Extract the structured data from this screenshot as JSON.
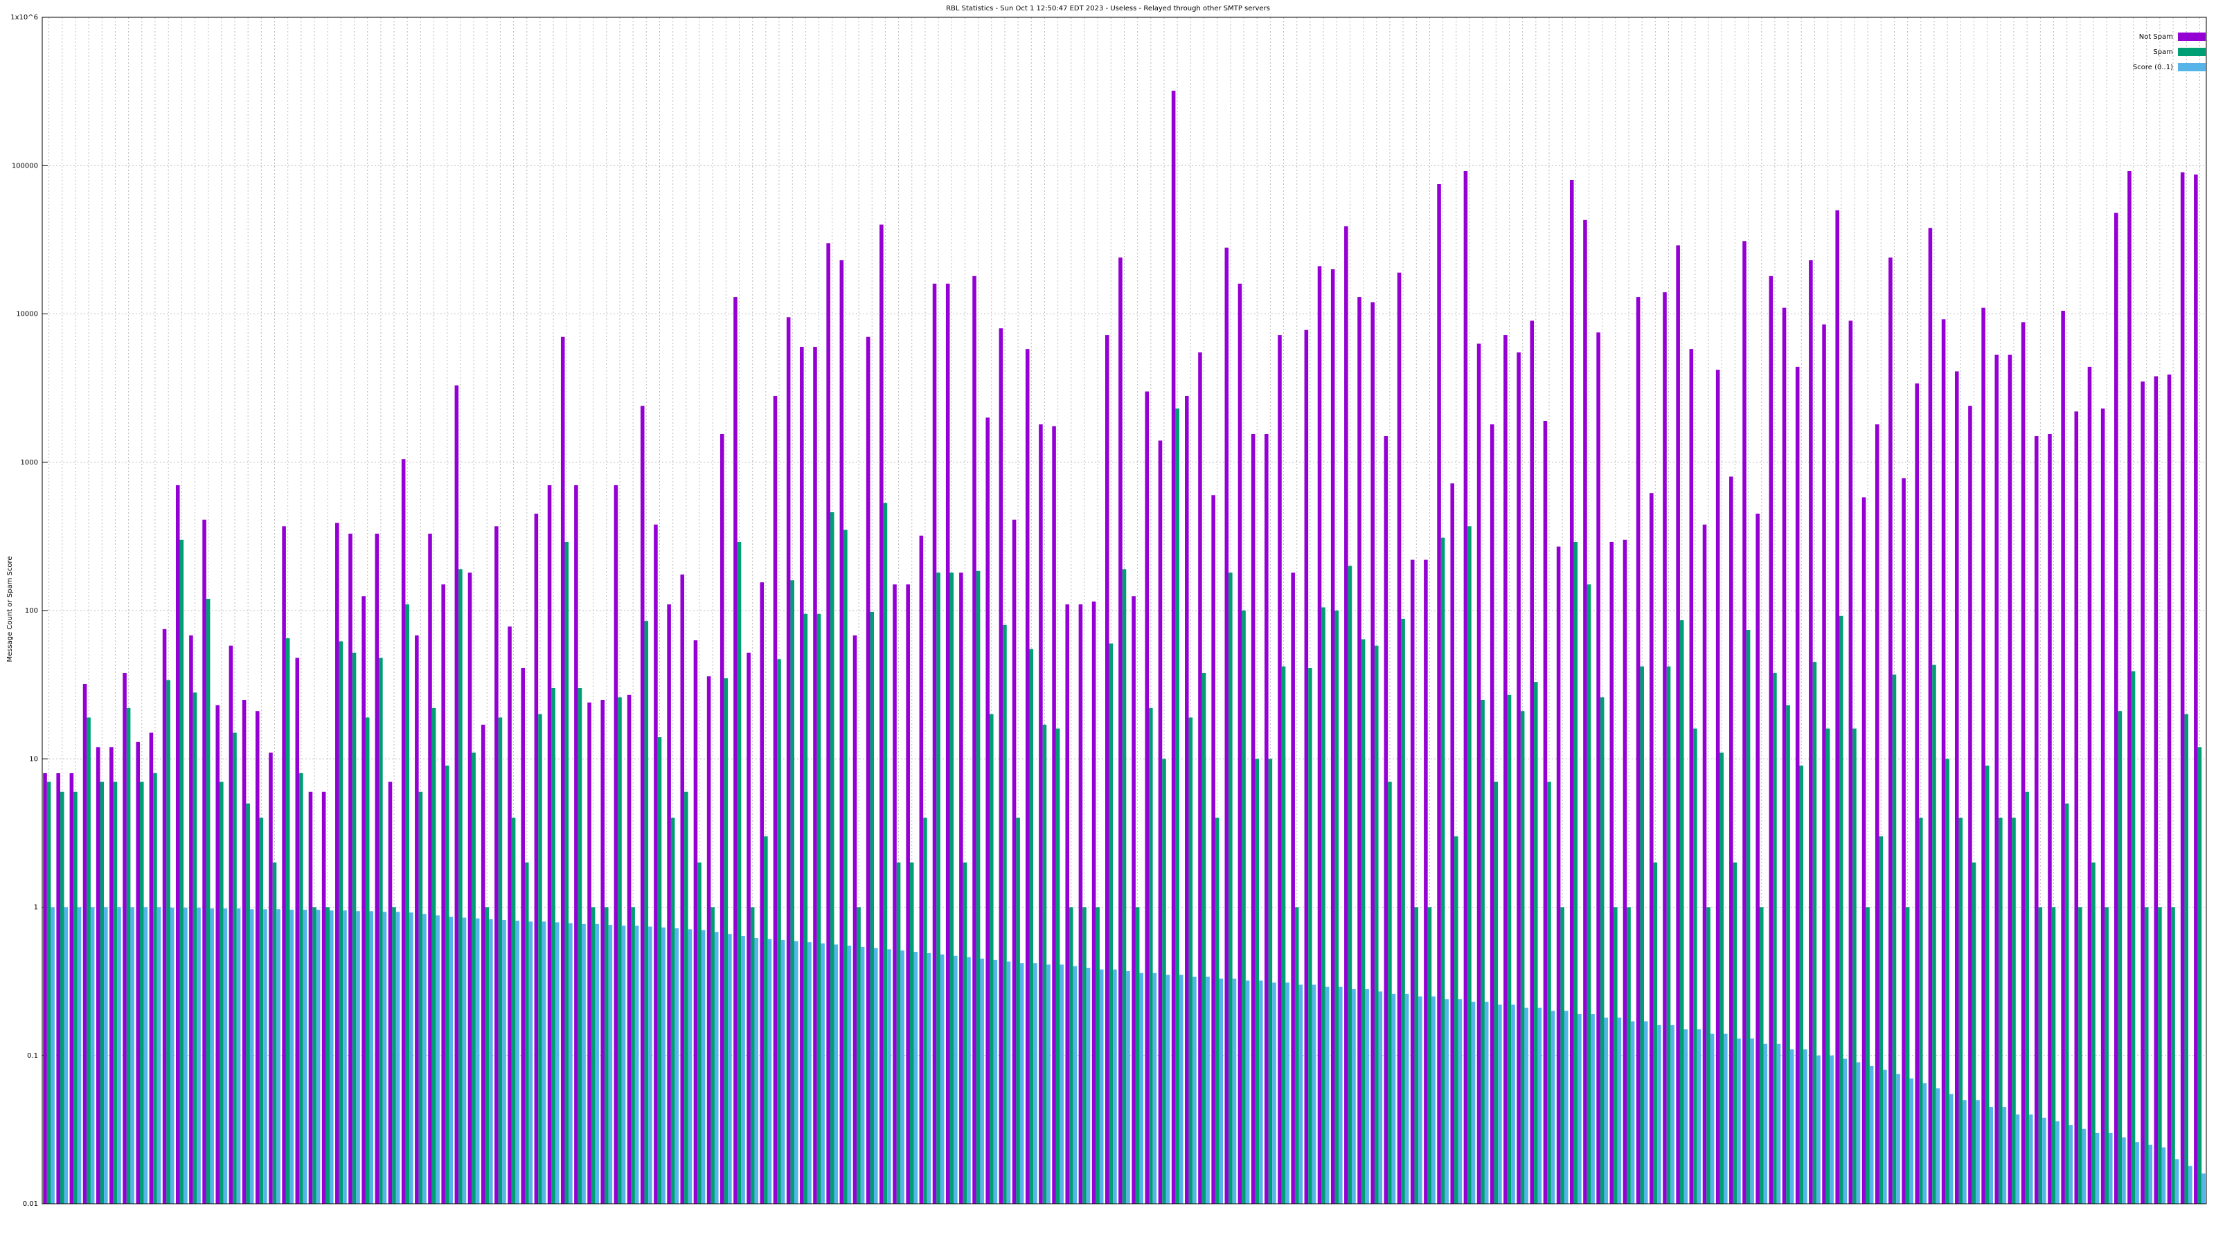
{
  "chart_data": {
    "type": "bar",
    "title": "RBL Statistics - Sun Oct  1 12:50:47 EDT 2023 - Useless - Relayed through other SMTP servers",
    "y_label": "Message Count or Spam Score",
    "log_scale": true,
    "grid": true,
    "legend": "top-right",
    "ylim": [
      0.01,
      1000000
    ],
    "yticks": [
      0.01,
      0.1,
      1,
      10,
      100,
      1000,
      10000,
      100000,
      {
        "value": 1000000,
        "label": "1x10^6"
      }
    ],
    "categories": [
      null,
      null,
      null,
      null,
      null,
      null,
      null,
      null,
      null,
      null,
      null,
      null,
      null,
      null,
      null,
      null,
      null,
      null,
      null,
      null,
      null,
      null,
      null,
      null,
      null,
      null,
      null,
      null,
      null,
      null,
      null,
      null,
      null,
      null,
      null,
      null,
      null,
      null,
      null,
      null,
      null,
      null,
      null,
      null,
      null,
      null,
      null,
      null,
      null,
      null,
      null,
      null,
      null,
      null,
      null,
      null,
      null,
      null,
      null,
      null,
      null,
      null,
      null,
      null,
      null,
      null,
      null,
      null,
      null,
      null,
      null,
      null,
      null,
      null,
      null,
      null,
      null,
      null,
      null,
      null,
      null,
      null,
      null,
      null,
      null,
      null,
      null,
      null,
      null,
      null,
      null,
      null,
      null,
      null,
      null,
      null,
      null,
      null,
      null,
      null,
      null,
      null,
      null,
      null,
      null,
      null,
      null,
      null,
      null,
      null,
      null,
      null,
      null,
      null,
      null,
      null,
      null,
      null,
      null,
      null,
      null,
      null,
      null,
      null,
      null,
      null,
      null,
      null,
      null,
      null,
      null,
      null,
      null,
      null,
      null,
      null,
      null,
      null,
      null,
      null,
      null,
      null,
      null,
      null,
      null,
      null,
      null,
      null,
      null,
      null,
      null,
      null,
      null,
      null,
      null,
      null,
      null,
      null,
      null,
      null,
      null,
      null,
      null
    ],
    "series": [
      {
        "name": "Not Spam",
        "color": "#9400d3",
        "values": [
          8,
          8,
          8,
          32,
          12,
          12,
          38,
          13,
          15,
          75,
          700,
          68,
          410,
          23,
          58,
          25,
          21,
          11,
          370,
          48,
          6,
          6,
          390,
          330,
          125,
          330,
          7,
          1050,
          68,
          330,
          150,
          3300,
          180,
          17,
          370,
          78,
          41,
          450,
          700,
          7000,
          700,
          24,
          25,
          700,
          27,
          2400,
          380,
          110,
          175,
          63,
          36,
          1550,
          13000,
          52,
          155,
          2800,
          9500,
          6000,
          6000,
          30000,
          23000,
          68,
          7000,
          40000,
          150,
          150,
          320,
          16000,
          16000,
          180,
          18000,
          2000,
          8000,
          410,
          5800,
          1800,
          1750,
          110,
          110,
          115,
          7200,
          24000,
          125,
          3000,
          1400,
          320000,
          2800,
          5500,
          600,
          28000,
          16000,
          1550,
          1550,
          7200,
          180,
          7800,
          21000,
          20000,
          39000,
          13000,
          12000,
          1500,
          19000,
          220,
          220,
          75000,
          720,
          92000,
          6300,
          1800,
          7200,
          5500,
          9000,
          1900,
          270,
          80000,
          43000,
          7500,
          290,
          300,
          13000,
          620,
          14000,
          29000,
          5800,
          380,
          4200,
          800,
          31000,
          450,
          18000,
          11000,
          4400,
          23000,
          8500,
          50000,
          9000,
          580,
          1800,
          24000,
          780,
          3400,
          38000,
          9200,
          4100,
          2400,
          11000,
          5300,
          5300,
          8800,
          1500,
          1550,
          10500,
          2200,
          4400,
          2300,
          48000,
          92000,
          3500,
          3800,
          3900,
          90000,
          87000
        ]
      },
      {
        "name": "Spam",
        "color": "#009e73",
        "values": [
          7,
          6,
          6,
          19,
          7,
          7,
          22,
          7,
          8,
          34,
          300,
          28,
          120,
          7,
          15,
          5,
          4,
          2,
          65,
          8,
          1,
          1,
          62,
          52,
          19,
          48,
          1,
          110,
          6,
          22,
          9,
          190,
          11,
          1,
          19,
          4,
          2,
          20,
          30,
          290,
          30,
          1,
          1,
          26,
          1,
          85,
          14,
          4,
          6,
          2,
          1,
          35,
          290,
          1,
          3,
          47,
          160,
          95,
          95,
          460,
          350,
          1,
          98,
          530,
          2,
          2,
          4,
          180,
          180,
          2,
          185,
          20,
          80,
          4,
          55,
          17,
          16,
          1,
          1,
          1,
          60,
          190,
          1,
          22,
          10,
          2300,
          19,
          38,
          4,
          180,
          100,
          10,
          10,
          42,
          1,
          41,
          105,
          100,
          200,
          64,
          58,
          7,
          88,
          1,
          1,
          310,
          3,
          370,
          25,
          7,
          27,
          21,
          33,
          7,
          1,
          290,
          150,
          26,
          1,
          1,
          42,
          2,
          42,
          86,
          16,
          1,
          11,
          2,
          74,
          1,
          38,
          23,
          9,
          45,
          16,
          92,
          16,
          1,
          3,
          37,
          1,
          4,
          43,
          10,
          4,
          2,
          9,
          4,
          4,
          6,
          1,
          1,
          5,
          1,
          2,
          1,
          21,
          39,
          1,
          1,
          1,
          20,
          12
        ]
      },
      {
        "name": "Score (0..1)",
        "color": "#56b4e9",
        "values": [
          1,
          1,
          1,
          1,
          1,
          1,
          1,
          1,
          1,
          0.99,
          0.99,
          0.99,
          0.98,
          0.98,
          0.98,
          0.97,
          0.97,
          0.97,
          0.96,
          0.96,
          0.96,
          0.95,
          0.95,
          0.94,
          0.94,
          0.93,
          0.93,
          0.92,
          0.9,
          0.88,
          0.86,
          0.85,
          0.84,
          0.83,
          0.82,
          0.81,
          0.8,
          0.8,
          0.79,
          0.78,
          0.77,
          0.77,
          0.76,
          0.75,
          0.75,
          0.74,
          0.73,
          0.72,
          0.71,
          0.7,
          0.68,
          0.66,
          0.64,
          0.62,
          0.61,
          0.6,
          0.59,
          0.58,
          0.57,
          0.56,
          0.55,
          0.54,
          0.53,
          0.52,
          0.51,
          0.5,
          0.49,
          0.48,
          0.47,
          0.46,
          0.45,
          0.44,
          0.43,
          0.42,
          0.42,
          0.41,
          0.41,
          0.4,
          0.39,
          0.38,
          0.38,
          0.37,
          0.36,
          0.36,
          0.35,
          0.35,
          0.34,
          0.34,
          0.33,
          0.33,
          0.32,
          0.32,
          0.31,
          0.31,
          0.3,
          0.3,
          0.29,
          0.29,
          0.28,
          0.28,
          0.27,
          0.26,
          0.26,
          0.25,
          0.25,
          0.24,
          0.24,
          0.23,
          0.23,
          0.22,
          0.22,
          0.21,
          0.21,
          0.2,
          0.2,
          0.19,
          0.19,
          0.18,
          0.18,
          0.17,
          0.17,
          0.16,
          0.16,
          0.15,
          0.15,
          0.14,
          0.14,
          0.13,
          0.13,
          0.12,
          0.12,
          0.11,
          0.11,
          0.1,
          0.1,
          0.095,
          0.09,
          0.085,
          0.08,
          0.075,
          0.07,
          0.065,
          0.06,
          0.055,
          0.05,
          0.05,
          0.045,
          0.045,
          0.04,
          0.04,
          0.038,
          0.036,
          0.034,
          0.032,
          0.03,
          0.03,
          0.028,
          0.026,
          0.025,
          0.024,
          0.02,
          0.018,
          0.016
        ]
      }
    ]
  }
}
